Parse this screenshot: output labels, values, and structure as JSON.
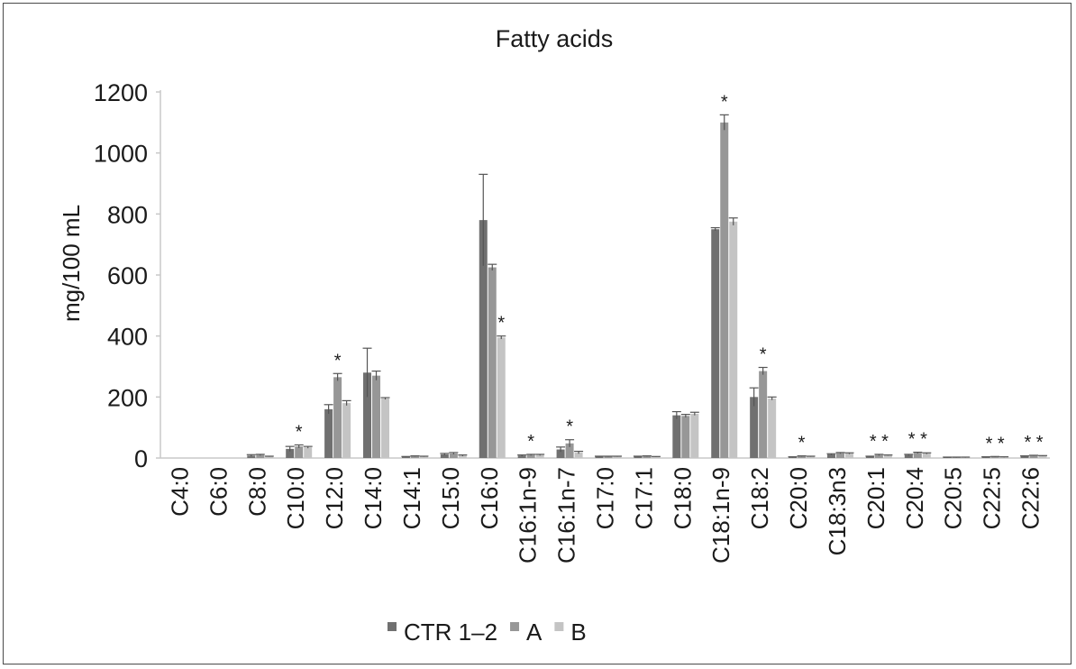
{
  "chart_data": {
    "type": "bar",
    "title": "Fatty acids",
    "ylabel": "mg/100 mL",
    "xlabel": "",
    "ylim": [
      0,
      1200
    ],
    "yticks": [
      "0",
      "200",
      "400",
      "600",
      "800",
      "1000",
      "1200"
    ],
    "grid": false,
    "legend_position": "bottom",
    "categories": [
      "C4:0",
      "C6:0",
      "C8:0",
      "C10:0",
      "C12:0",
      "C14:0",
      "C14:1",
      "C15:0",
      "C16:0",
      "C16:1n-9",
      "C16:1n-7",
      "C17:0",
      "C17:1",
      "C18:0",
      "C18:1n-9",
      "C18:2",
      "C20:0",
      "C18:3n3",
      "C20:1",
      "C20:4",
      "C20:5",
      "C22:5",
      "C22:6"
    ],
    "series": [
      {
        "name": "CTR 1–2",
        "color": "#707070",
        "values": [
          0,
          0,
          8,
          30,
          160,
          280,
          4,
          12,
          780,
          8,
          28,
          5,
          5,
          140,
          750,
          200,
          3,
          12,
          5,
          10,
          2,
          3,
          6
        ],
        "errors": [
          0,
          0,
          3,
          8,
          15,
          80,
          1,
          3,
          150,
          2,
          8,
          1,
          1,
          12,
          5,
          30,
          1,
          2,
          1,
          2,
          1,
          1,
          1
        ]
      },
      {
        "name": "A",
        "color": "#979797",
        "values": [
          0,
          0,
          10,
          38,
          265,
          270,
          6,
          15,
          625,
          10,
          48,
          5,
          6,
          138,
          1100,
          285,
          6,
          16,
          10,
          17,
          2,
          4,
          8
        ],
        "errors": [
          0,
          0,
          2,
          5,
          12,
          15,
          1,
          3,
          10,
          2,
          12,
          1,
          1,
          5,
          25,
          12,
          1,
          2,
          2,
          2,
          1,
          1,
          1
        ]
      },
      {
        "name": "B",
        "color": "#c4c4c4",
        "values": [
          0,
          0,
          5,
          35,
          180,
          195,
          5,
          8,
          395,
          10,
          18,
          5,
          4,
          145,
          775,
          195,
          5,
          15,
          9,
          15,
          2,
          3,
          7
        ],
        "errors": [
          0,
          0,
          1,
          3,
          8,
          3,
          1,
          2,
          5,
          2,
          4,
          1,
          1,
          5,
          12,
          5,
          1,
          2,
          1,
          2,
          1,
          1,
          1
        ]
      }
    ],
    "annotations": [
      {
        "category": "C10:0",
        "text": "*",
        "series": "A"
      },
      {
        "category": "C12:0",
        "text": "*",
        "series": "A"
      },
      {
        "category": "C16:0",
        "text": "*",
        "series": "B"
      },
      {
        "category": "C16:1n-9",
        "text": "*",
        "series": "A"
      },
      {
        "category": "C16:1n-7",
        "text": "*",
        "series": "A"
      },
      {
        "category": "C18:1n-9",
        "text": "*",
        "series": "A"
      },
      {
        "category": "C18:2",
        "text": "*",
        "series": "A"
      },
      {
        "category": "C20:0",
        "text": "*",
        "series": "A"
      },
      {
        "category": "C20:1",
        "text": "* *",
        "series": "A"
      },
      {
        "category": "C20:4",
        "text": "* *",
        "series": "A"
      },
      {
        "category": "C22:5",
        "text": "* *",
        "series": "A"
      },
      {
        "category": "C22:6",
        "text": "* *",
        "series": "A"
      }
    ]
  }
}
